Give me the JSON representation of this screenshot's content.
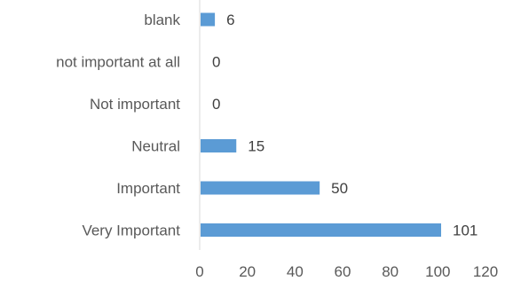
{
  "chart_data": {
    "type": "bar",
    "orientation": "horizontal",
    "categories": [
      "blank",
      "not important at all",
      "Not important",
      "Neutral",
      "Important",
      "Very Important"
    ],
    "values": [
      6,
      0,
      0,
      15,
      50,
      101
    ],
    "xlim": [
      0,
      120
    ],
    "x_ticks": [
      "0",
      "20",
      "40",
      "60",
      "80",
      "100",
      "120"
    ],
    "bar_color": "#5b9bd5",
    "grid": false,
    "legend": "none",
    "data_labels": true
  }
}
